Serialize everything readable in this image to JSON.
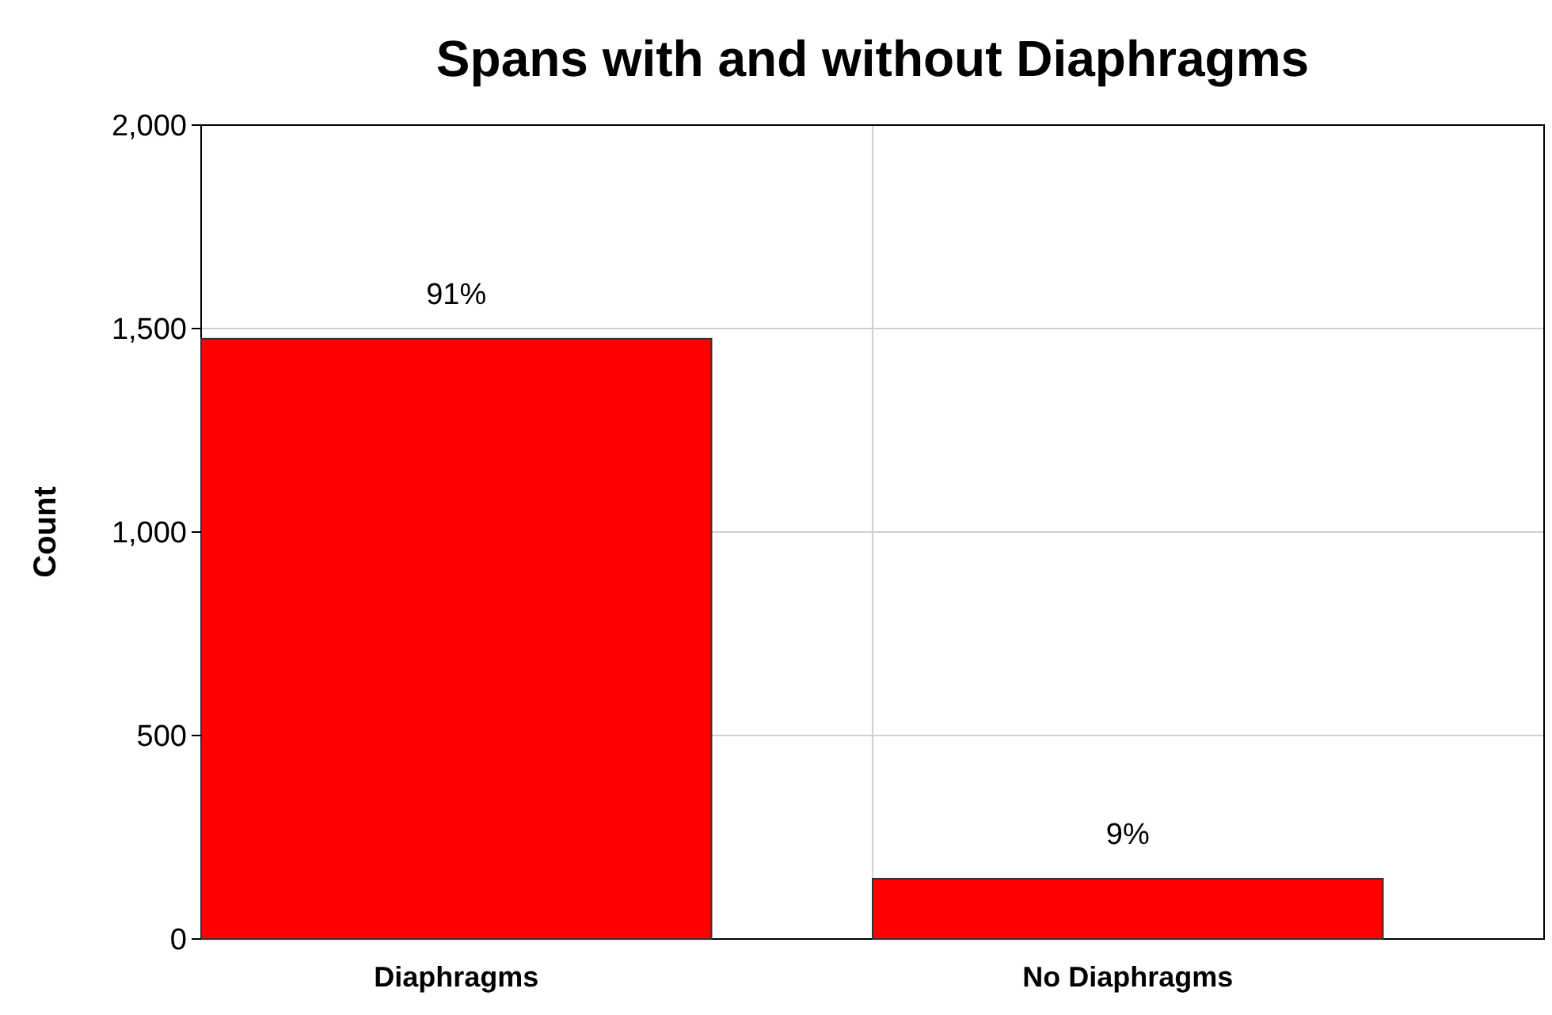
{
  "chart_data": {
    "type": "bar",
    "title": "Spans with and without Diaphragms",
    "ylabel": "Count",
    "categories": [
      "Diaphragms",
      "No Diaphragms"
    ],
    "values": [
      1475,
      148
    ],
    "annotations": [
      {
        "text": "91%",
        "x": "Diaphragms",
        "y": 1475
      },
      {
        "text": "9%",
        "x": "No Diaphragms",
        "y": 148
      }
    ],
    "color": "#ff0000",
    "ylim": [
      0,
      2000
    ],
    "yticks": [
      {
        "value": 0,
        "label": "0"
      },
      {
        "value": 500,
        "label": "500"
      },
      {
        "value": 1000,
        "label": "1,000"
      },
      {
        "value": 1500,
        "label": "1,500"
      },
      {
        "value": 2000,
        "label": "2,000"
      }
    ],
    "grid": true
  }
}
